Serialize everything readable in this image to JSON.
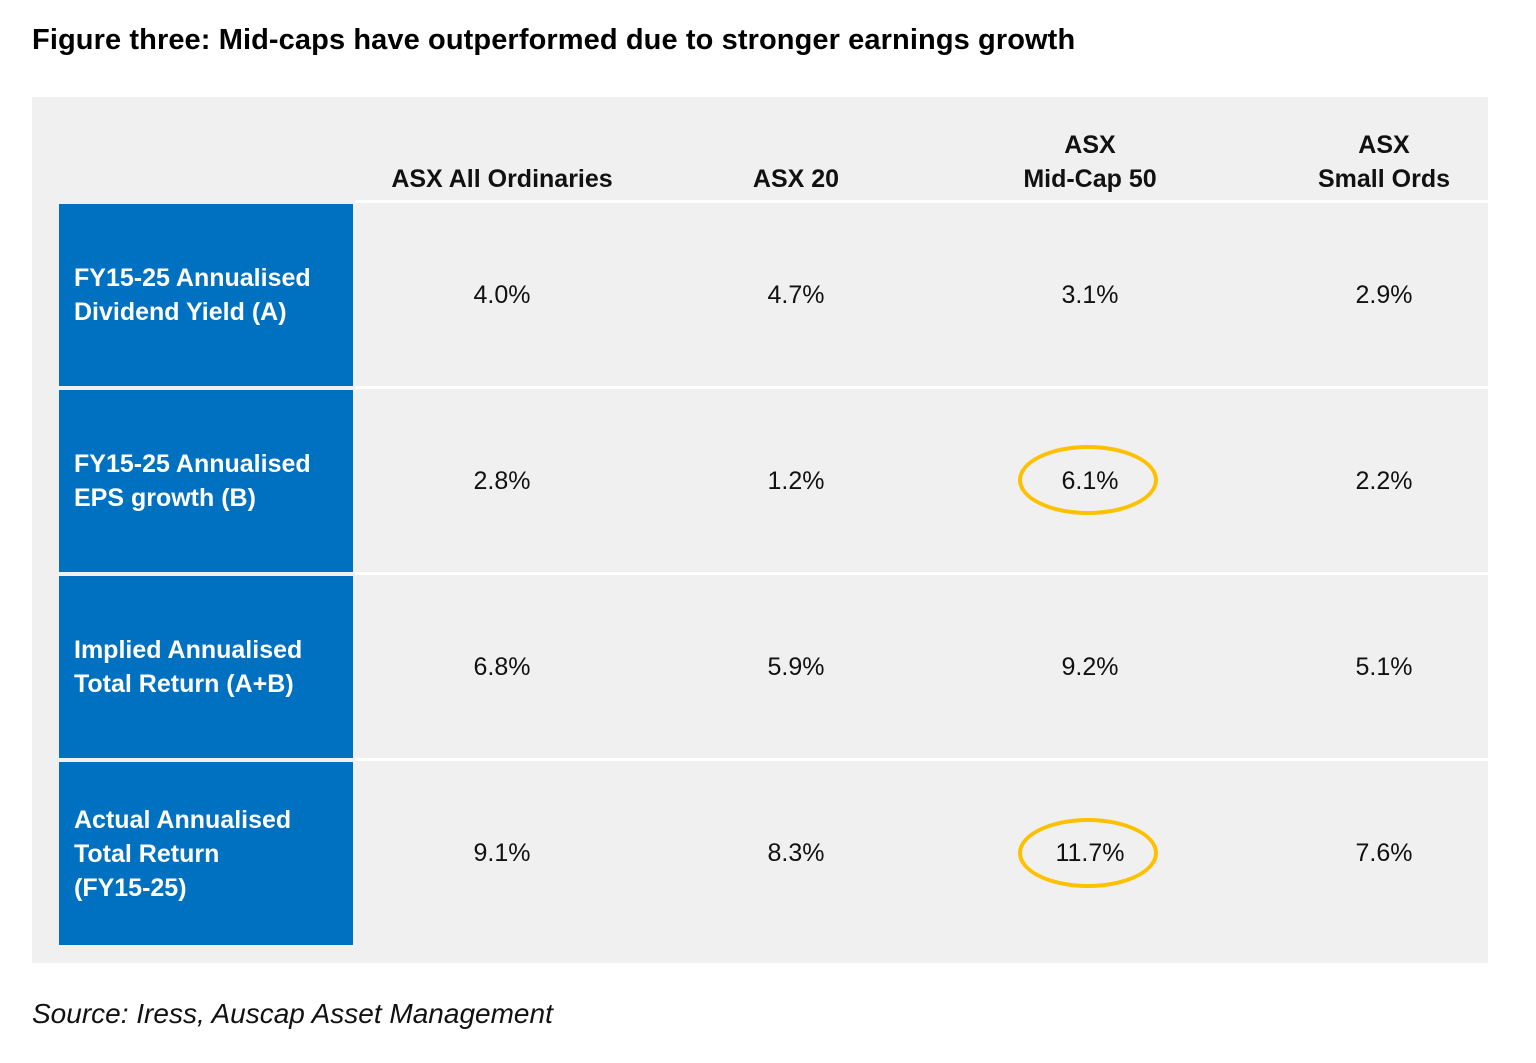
{
  "figure": {
    "title": "Figure three: Mid-caps have outperformed due to stronger earnings growth",
    "source": "Source: Iress, Auscap Asset Management"
  },
  "chart_data": {
    "type": "table",
    "columns": [
      "ASX All Ordinaries",
      "ASX 20",
      "ASX\nMid-Cap 50",
      "ASX\nSmall Ords"
    ],
    "rows": [
      {
        "label": "FY15-25 Annualised\nDividend Yield (A)",
        "values": [
          "4.0%",
          "4.7%",
          "3.1%",
          "2.9%"
        ]
      },
      {
        "label": "FY15-25 Annualised\nEPS growth (B)",
        "values": [
          "2.8%",
          "1.2%",
          "6.1%",
          "2.2%"
        ]
      },
      {
        "label": "Implied Annualised\nTotal Return  (A+B)",
        "values": [
          "6.8%",
          "5.9%",
          "9.2%",
          "5.1%"
        ]
      },
      {
        "label": "Actual Annualised\nTotal Return\n(FY15-25)",
        "values": [
          "9.1%",
          "8.3%",
          "11.7%",
          "7.6%"
        ]
      }
    ],
    "highlighted_cells": [
      {
        "row": 1,
        "col": 2
      },
      {
        "row": 3,
        "col": 2
      }
    ],
    "colors": {
      "row_label_background": "#0070c0",
      "row_label_text": "#ffffff",
      "panel_background": "#f0f0f0",
      "highlight_ring": "#ffc000"
    }
  }
}
